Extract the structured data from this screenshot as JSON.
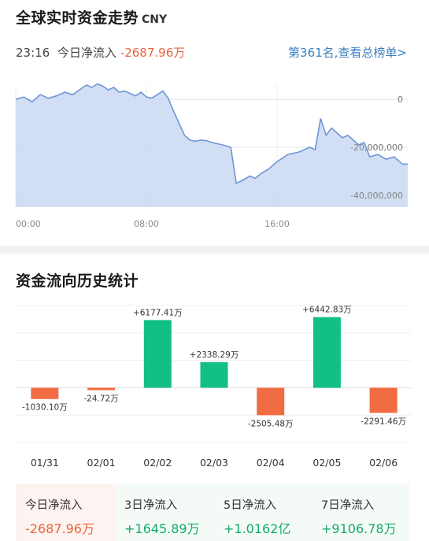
{
  "header": {
    "title": "全球实时资金走势",
    "currency": "CNY",
    "time": "23:16",
    "net_inflow_label": "今日净流入",
    "net_inflow_value": "-2687.96万",
    "rank_link": "第361名,查看总榜单>"
  },
  "trend_chart": {
    "type": "area",
    "y_tick_labels": [
      "0",
      "-20,000,000",
      "-40,000,000"
    ],
    "y_ticks": [
      0,
      -20000000,
      -40000000
    ],
    "ylim": [
      -45000000,
      6000000
    ],
    "x_tick_labels": [
      "00:00",
      "08:00",
      "16:00"
    ],
    "x_ticks": [
      0,
      480,
      960
    ],
    "xlim": [
      0,
      1440
    ],
    "grid": true,
    "colors": {
      "line": "#6f95d6",
      "fill": "#c9d8f2"
    },
    "points": [
      [
        0,
        0
      ],
      [
        30,
        1000000
      ],
      [
        60,
        -1000000
      ],
      [
        90,
        2000000
      ],
      [
        120,
        500000
      ],
      [
        150,
        1500000
      ],
      [
        180,
        3000000
      ],
      [
        210,
        2000000
      ],
      [
        240,
        4500000
      ],
      [
        260,
        6000000
      ],
      [
        280,
        5000000
      ],
      [
        300,
        6500000
      ],
      [
        320,
        5500000
      ],
      [
        340,
        4000000
      ],
      [
        360,
        5000000
      ],
      [
        380,
        3000000
      ],
      [
        400,
        3500000
      ],
      [
        420,
        2500000
      ],
      [
        440,
        1500000
      ],
      [
        460,
        3000000
      ],
      [
        480,
        1000000
      ],
      [
        500,
        500000
      ],
      [
        520,
        2000000
      ],
      [
        540,
        3500000
      ],
      [
        560,
        500000
      ],
      [
        580,
        -5000000
      ],
      [
        600,
        -10000000
      ],
      [
        620,
        -15000000
      ],
      [
        640,
        -17000000
      ],
      [
        660,
        -17500000
      ],
      [
        680,
        -17000000
      ],
      [
        700,
        -17200000
      ],
      [
        720,
        -18000000
      ],
      [
        760,
        -19000000
      ],
      [
        790,
        -20000000
      ],
      [
        810,
        -35000000
      ],
      [
        830,
        -34000000
      ],
      [
        860,
        -32000000
      ],
      [
        880,
        -33000000
      ],
      [
        900,
        -31000000
      ],
      [
        930,
        -29000000
      ],
      [
        960,
        -26000000
      ],
      [
        1000,
        -23000000
      ],
      [
        1040,
        -22000000
      ],
      [
        1080,
        -20000000
      ],
      [
        1100,
        -21000000
      ],
      [
        1120,
        -8000000
      ],
      [
        1140,
        -15000000
      ],
      [
        1160,
        -12000000
      ],
      [
        1180,
        -14000000
      ],
      [
        1200,
        -16000000
      ],
      [
        1220,
        -15000000
      ],
      [
        1240,
        -17000000
      ],
      [
        1260,
        -19000000
      ],
      [
        1280,
        -18000000
      ],
      [
        1300,
        -24000000
      ],
      [
        1330,
        -23000000
      ],
      [
        1360,
        -25000000
      ],
      [
        1390,
        -24000000
      ],
      [
        1420,
        -27000000
      ],
      [
        1440,
        -27000000
      ]
    ]
  },
  "history": {
    "title": "资金流向历史统计",
    "colors": {
      "positive": "#12bf85",
      "negative": "#f26c43"
    }
  },
  "chart_data": {
    "type": "bar",
    "title": "资金流向历史统计",
    "unit": "万",
    "categories": [
      "01/31",
      "02/01",
      "02/02",
      "02/03",
      "02/04",
      "02/05",
      "02/06"
    ],
    "values": [
      -1030.1,
      -24.72,
      6177.41,
      2338.29,
      -2505.48,
      6442.83,
      -2291.46
    ],
    "labels": [
      "-1030.10万",
      "-24.72万",
      "+6177.41万",
      "+2338.29万",
      "-2505.48万",
      "+6442.83万",
      "-2291.46万"
    ],
    "ylim": [
      -5000,
      7500
    ],
    "grid": true
  },
  "summary": [
    {
      "label": "今日净流入",
      "value": "-2687.96万",
      "sign": "neg"
    },
    {
      "label": "3日净流入",
      "value": "+1645.89万",
      "sign": "pos"
    },
    {
      "label": "5日净流入",
      "value": "+1.0162亿",
      "sign": "pos"
    },
    {
      "label": "7日净流入",
      "value": "+9106.78万",
      "sign": "pos"
    }
  ]
}
